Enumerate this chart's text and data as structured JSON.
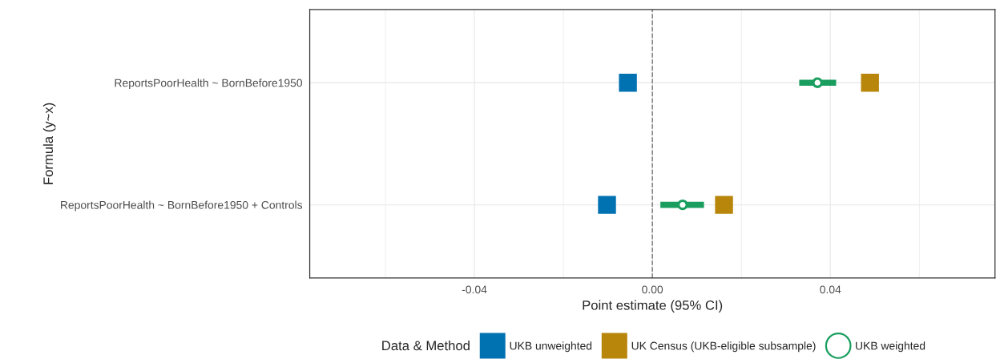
{
  "chart_data": {
    "type": "scatter",
    "orientation": "horizontal",
    "xlabel": "Point estimate (95% CI)",
    "ylabel": "Formula (y~x)",
    "legend_title": "Data & Method",
    "categories": [
      "ReportsPoorHealth ~ BornBefore1950",
      "ReportsPoorHealth ~ BornBefore1950 + Controls"
    ],
    "series": [
      {
        "name": "UKB unweighted",
        "color": "#0072b2",
        "marker": "square",
        "values": [
          -0.0055,
          -0.0102
        ]
      },
      {
        "name": "UK Census (UKB-eligible subsample)",
        "color": "#b8860b",
        "marker": "square",
        "values": [
          0.0489,
          0.0161
        ]
      },
      {
        "name": "UKB weighted",
        "color": "#1a9e5f",
        "marker": "circle",
        "values": [
          0.0371,
          0.0068
        ],
        "errors": [
          [
            0.033,
            0.0413
          ],
          [
            0.0018,
            0.0116
          ]
        ]
      }
    ],
    "xlim": [
      -0.077,
      0.077
    ],
    "xticks": [
      {
        "value": -0.06,
        "label": null
      },
      {
        "value": -0.04,
        "label": "-0.04"
      },
      {
        "value": -0.02,
        "label": null
      },
      {
        "value": 0,
        "label": "0.00"
      },
      {
        "value": 0.02,
        "label": null
      },
      {
        "value": 0.04,
        "label": "0.04"
      },
      {
        "value": 0.06,
        "label": null
      }
    ],
    "ref_lines": [
      {
        "axis": "x",
        "value": 0,
        "color": "#808080",
        "line_style": "dashed"
      }
    ],
    "grid": true,
    "legend": "bottom"
  }
}
